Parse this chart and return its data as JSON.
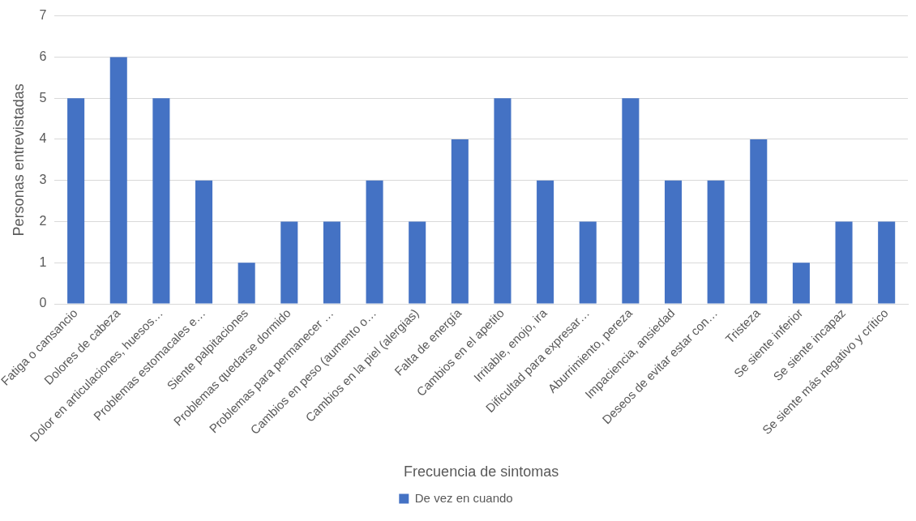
{
  "chart_data": {
    "type": "bar",
    "xlabel": "Frecuencia de sintomas",
    "ylabel": "Personas entrevistadas",
    "categories": [
      "Fatiga o cansancio",
      "Dolores de cabeza",
      "Dolor en articulaciones, huesos…",
      "Problemas estomacales e…",
      "Siente palpitaciones",
      "Problemas quedarse dormido",
      "Problemas para permanecer …",
      "Cambios en peso (aumento o…",
      "Cambios en la piel (alergias)",
      "Falta de energía",
      "Cambios en el apetito",
      "Irritable, enojo, ira",
      "Dificultad para expresar…",
      "Aburrimiento, pereza",
      "Impaciencia, ansiedad",
      "Deseos de evitar estar con…",
      "Tristeza",
      "Se siente inferior",
      "Se siente incapaz",
      "Se siente más negativo y crítico"
    ],
    "series": [
      {
        "name": "De vez en cuando",
        "color": "#4472c4",
        "values": [
          5,
          6,
          5,
          3,
          1,
          2,
          2,
          3,
          2,
          4,
          5,
          3,
          2,
          5,
          3,
          3,
          4,
          1,
          2,
          2
        ]
      }
    ],
    "ylim": [
      0,
      7
    ],
    "yticks": [
      0,
      1,
      2,
      3,
      4,
      5,
      6,
      7
    ],
    "grid": "y",
    "legend": "bottom"
  }
}
